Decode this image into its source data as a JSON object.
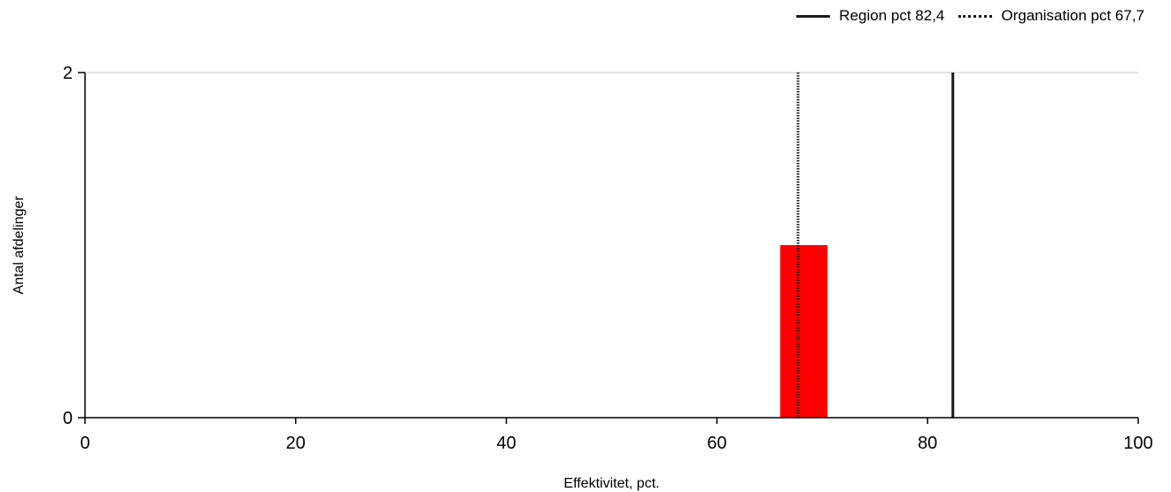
{
  "chart_data": {
    "type": "bar",
    "xlabel": "Effektivitet, pct.",
    "ylabel": "Antal afdelinger",
    "xlim": [
      0,
      100
    ],
    "ylim": [
      0,
      2
    ],
    "x_ticks": [
      "0",
      "20",
      "40",
      "60",
      "80",
      "100"
    ],
    "y_ticks": [
      "0",
      "2"
    ],
    "grid": "horizontal",
    "legend_position": "top-right",
    "bars": [
      {
        "x_start": 66,
        "x_end": 70.5,
        "value": 1,
        "color": "#ff0000"
      }
    ],
    "reference_lines": [
      {
        "label": "Region pct 82,4",
        "x": 82.4,
        "style": "solid",
        "color": "#1a1a1a"
      },
      {
        "label": "Organisation pct 67,7",
        "x": 67.7,
        "style": "dotted",
        "color": "#1a1a1a"
      }
    ]
  }
}
